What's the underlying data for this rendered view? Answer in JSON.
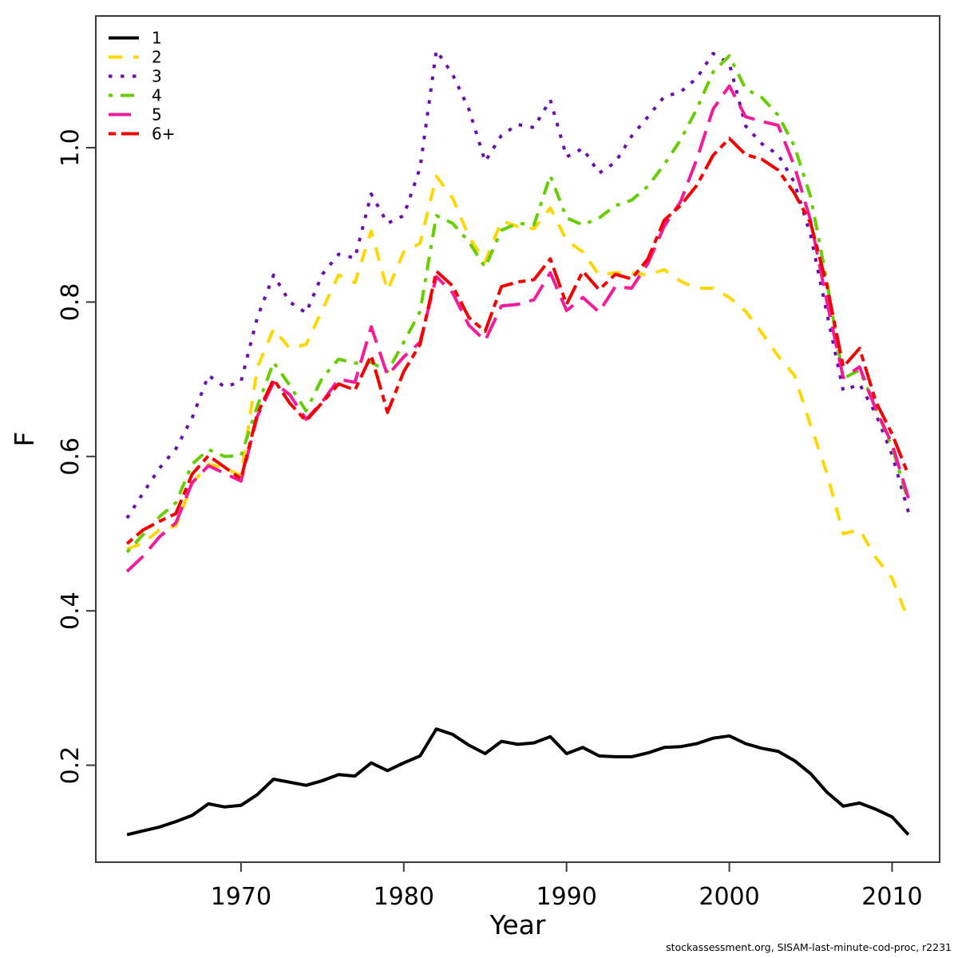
{
  "footer": {
    "text": "stockassessment.org, SISAM-last-minute-cod-proc, r2231"
  },
  "chart_data": {
    "type": "line",
    "title": "",
    "xlabel": "Year",
    "ylabel": "F",
    "grid": false,
    "legend_position": "top-left",
    "x_ticks": [
      1970,
      1980,
      1990,
      2000,
      2010
    ],
    "y_ticks": [
      0.2,
      0.4,
      0.6,
      0.8,
      1.0
    ],
    "x_range": [
      1961.08,
      2012.92
    ],
    "y_range": [
      0.0744,
      1.1706
    ],
    "years": [
      1963,
      1964,
      1965,
      1966,
      1967,
      1968,
      1969,
      1970,
      1971,
      1972,
      1973,
      1974,
      1975,
      1976,
      1977,
      1978,
      1979,
      1980,
      1981,
      1982,
      1983,
      1984,
      1985,
      1986,
      1987,
      1988,
      1989,
      1990,
      1991,
      1992,
      1993,
      1994,
      1995,
      1996,
      1997,
      1998,
      1999,
      2000,
      2001,
      2002,
      2003,
      2004,
      2005,
      2006,
      2007,
      2008,
      2009,
      2010,
      2011
    ],
    "series": [
      {
        "name": "1",
        "color": "#000000",
        "linetype": "solid",
        "values": [
          0.11,
          0.115,
          0.12,
          0.127,
          0.135,
          0.15,
          0.146,
          0.148,
          0.162,
          0.182,
          0.178,
          0.174,
          0.18,
          0.188,
          0.186,
          0.203,
          0.193,
          0.203,
          0.212,
          0.247,
          0.24,
          0.226,
          0.215,
          0.231,
          0.227,
          0.229,
          0.237,
          0.215,
          0.223,
          0.212,
          0.211,
          0.211,
          0.216,
          0.223,
          0.224,
          0.228,
          0.235,
          0.238,
          0.228,
          0.222,
          0.218,
          0.206,
          0.189,
          0.165,
          0.147,
          0.151,
          0.143,
          0.133,
          0.11
        ]
      },
      {
        "name": "2",
        "color": "#FFD700",
        "linetype": "dashed",
        "values": [
          0.48,
          0.488,
          0.505,
          0.51,
          0.565,
          0.59,
          0.585,
          0.575,
          0.715,
          0.765,
          0.74,
          0.745,
          0.79,
          0.835,
          0.825,
          0.892,
          0.815,
          0.865,
          0.876,
          0.963,
          0.935,
          0.885,
          0.852,
          0.905,
          0.898,
          0.895,
          0.922,
          0.88,
          0.865,
          0.835,
          0.838,
          0.838,
          0.835,
          0.842,
          0.827,
          0.818,
          0.818,
          0.806,
          0.788,
          0.76,
          0.73,
          0.705,
          0.64,
          0.578,
          0.5,
          0.505,
          0.469,
          0.442,
          0.388
        ]
      },
      {
        "name": "3",
        "color": "#6A0DAD",
        "linetype": "dotted",
        "values": [
          0.52,
          0.553,
          0.585,
          0.61,
          0.65,
          0.705,
          0.69,
          0.697,
          0.78,
          0.835,
          0.8,
          0.786,
          0.836,
          0.862,
          0.857,
          0.94,
          0.902,
          0.912,
          0.974,
          1.126,
          1.095,
          1.05,
          0.982,
          1.016,
          1.03,
          1.026,
          1.062,
          0.988,
          0.999,
          0.967,
          0.981,
          1.015,
          1.04,
          1.066,
          1.072,
          1.09,
          1.122,
          1.109,
          1.028,
          1.005,
          0.991,
          0.955,
          0.886,
          0.785,
          0.685,
          0.694,
          0.655,
          0.602,
          0.528
        ]
      },
      {
        "name": "4",
        "color": "#66CD00",
        "linetype": "dotdash",
        "values": [
          0.476,
          0.499,
          0.522,
          0.54,
          0.59,
          0.609,
          0.6,
          0.601,
          0.665,
          0.722,
          0.692,
          0.659,
          0.702,
          0.726,
          0.721,
          0.722,
          0.71,
          0.748,
          0.788,
          0.912,
          0.902,
          0.878,
          0.845,
          0.893,
          0.902,
          0.9,
          0.964,
          0.909,
          0.9,
          0.909,
          0.925,
          0.932,
          0.95,
          0.978,
          1.01,
          1.05,
          1.098,
          1.119,
          1.076,
          1.065,
          1.042,
          1.002,
          0.936,
          0.826,
          0.701,
          0.712,
          0.662,
          0.612,
          0.541
        ]
      },
      {
        "name": "5",
        "color": "#F31B9A",
        "linetype": "longdash",
        "values": [
          0.451,
          0.471,
          0.496,
          0.514,
          0.566,
          0.588,
          0.578,
          0.568,
          0.652,
          0.696,
          0.68,
          0.648,
          0.671,
          0.7,
          0.696,
          0.768,
          0.705,
          0.729,
          0.748,
          0.833,
          0.812,
          0.77,
          0.75,
          0.795,
          0.797,
          0.803,
          0.838,
          0.789,
          0.806,
          0.787,
          0.82,
          0.818,
          0.85,
          0.898,
          0.93,
          0.985,
          1.05,
          1.08,
          1.04,
          1.034,
          1.029,
          0.976,
          0.905,
          0.8,
          0.702,
          0.716,
          0.661,
          0.616,
          0.546
        ]
      },
      {
        "name": "6+",
        "color": "#F40000",
        "linetype": "twodash",
        "values": [
          0.487,
          0.505,
          0.516,
          0.526,
          0.577,
          0.601,
          0.586,
          0.571,
          0.655,
          0.7,
          0.669,
          0.646,
          0.67,
          0.694,
          0.686,
          0.731,
          0.657,
          0.71,
          0.745,
          0.84,
          0.821,
          0.78,
          0.762,
          0.82,
          0.826,
          0.829,
          0.856,
          0.797,
          0.84,
          0.816,
          0.836,
          0.83,
          0.856,
          0.906,
          0.925,
          0.951,
          0.99,
          1.012,
          0.991,
          0.985,
          0.971,
          0.941,
          0.902,
          0.821,
          0.716,
          0.74,
          0.671,
          0.629,
          0.576
        ]
      }
    ]
  }
}
